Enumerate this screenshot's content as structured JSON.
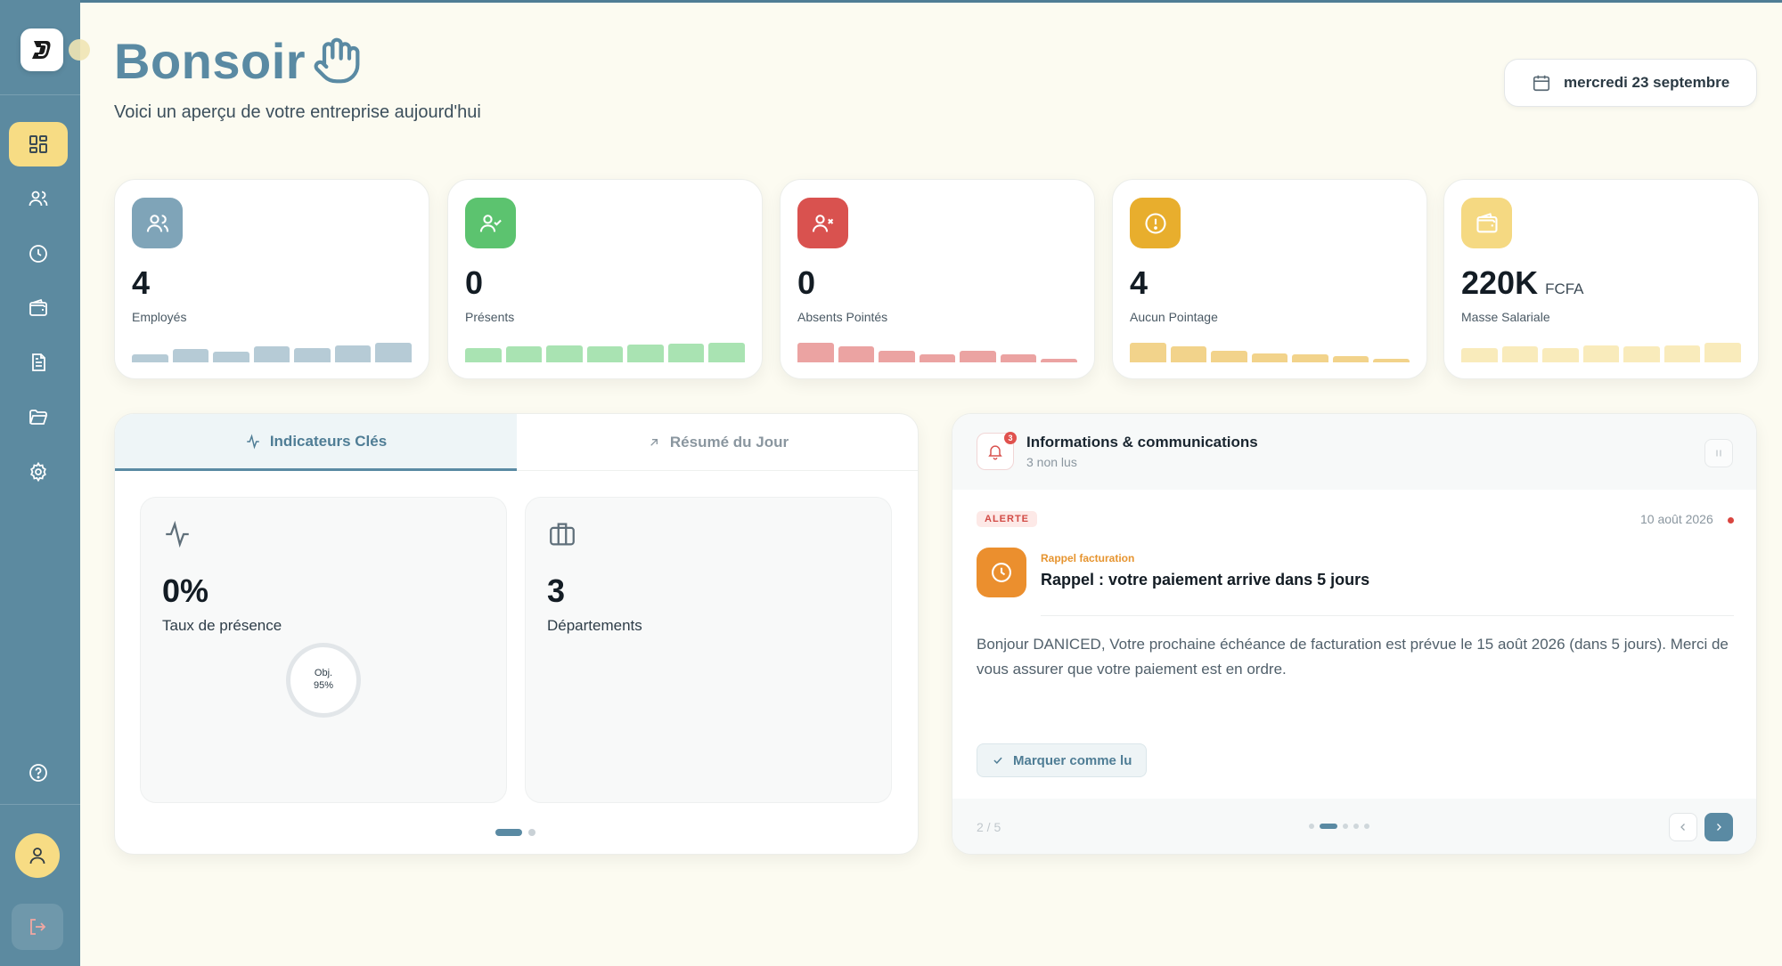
{
  "header": {
    "greeting": "Bonsoir",
    "subtitle": "Voici un aperçu de votre entreprise aujourd'hui",
    "date": "mercredi 23 septembre"
  },
  "sidebar": {
    "items": [
      {
        "icon": "dashboard-icon",
        "active": true
      },
      {
        "icon": "users-icon",
        "active": false
      },
      {
        "icon": "clock-icon",
        "active": false
      },
      {
        "icon": "wallet-icon",
        "active": false
      },
      {
        "icon": "document-icon",
        "active": false
      },
      {
        "icon": "folder-icon",
        "active": false
      },
      {
        "icon": "gear-icon",
        "active": false
      }
    ],
    "help_icon": "help-icon",
    "avatar_icon": "user-icon",
    "logout_icon": "logout-icon"
  },
  "stats": [
    {
      "value": "4",
      "unit": "",
      "label": "Employés",
      "color": "#7fa4b8",
      "bar_color": "#b6cbd6",
      "bars": [
        0.3,
        0.5,
        0.4,
        0.6,
        0.55,
        0.65,
        0.75
      ]
    },
    {
      "value": "0",
      "unit": "",
      "label": "Présents",
      "color": "#5cc36f",
      "bar_color": "#a9e3b2",
      "bars": [
        0.55,
        0.6,
        0.65,
        0.6,
        0.68,
        0.7,
        0.75
      ]
    },
    {
      "value": "0",
      "unit": "",
      "label": "Absents Pointés",
      "color": "#d9524f",
      "bar_color": "#eba3a2",
      "bars": [
        0.75,
        0.6,
        0.45,
        0.3,
        0.45,
        0.3,
        0.15
      ]
    },
    {
      "value": "4",
      "unit": "",
      "label": "Aucun Pointage",
      "color": "#e8ae2d",
      "bar_color": "#f2d38b",
      "bars": [
        0.75,
        0.6,
        0.45,
        0.35,
        0.3,
        0.22,
        0.15
      ]
    },
    {
      "value": "220K",
      "unit": "FCFA",
      "label": "Masse Salariale",
      "color": "#f5d982",
      "bar_color": "#f9ebbb",
      "bars": [
        0.55,
        0.6,
        0.55,
        0.65,
        0.6,
        0.65,
        0.75
      ]
    }
  ],
  "tabs": [
    {
      "label": "Indicateurs Clés",
      "icon": "activity-icon",
      "active": true
    },
    {
      "label": "Résumé du Jour",
      "icon": "arrow-up-right-icon",
      "active": false
    }
  ],
  "kpis": [
    {
      "value": "0%",
      "label": "Taux de présence",
      "icon": "activity-icon",
      "goal_line1": "Obj.",
      "goal_line2": "95%"
    },
    {
      "value": "3",
      "label": "Départements",
      "icon": "briefcase-icon"
    }
  ],
  "info": {
    "title": "Informations & communications",
    "subtitle": "3 non lus",
    "badge_count": "3",
    "message": {
      "tag": "ALERTE",
      "date": "10 août 2026",
      "category": "Rappel facturation",
      "title": "Rappel : votre paiement arrive dans 5 jours",
      "body": "Bonjour DANICED, Votre prochaine échéance de facturation est prévue le 15 août 2026 (dans 5 jours). Merci de vous assurer que votre paiement est en ordre."
    },
    "mark_read": "Marquer comme lu",
    "page": "2 / 5"
  },
  "colors": {
    "sidebar": "#5c8aa0",
    "accent": "#5a8aa3",
    "active_nav": "#f7dc84",
    "background": "#fcfbf1"
  }
}
